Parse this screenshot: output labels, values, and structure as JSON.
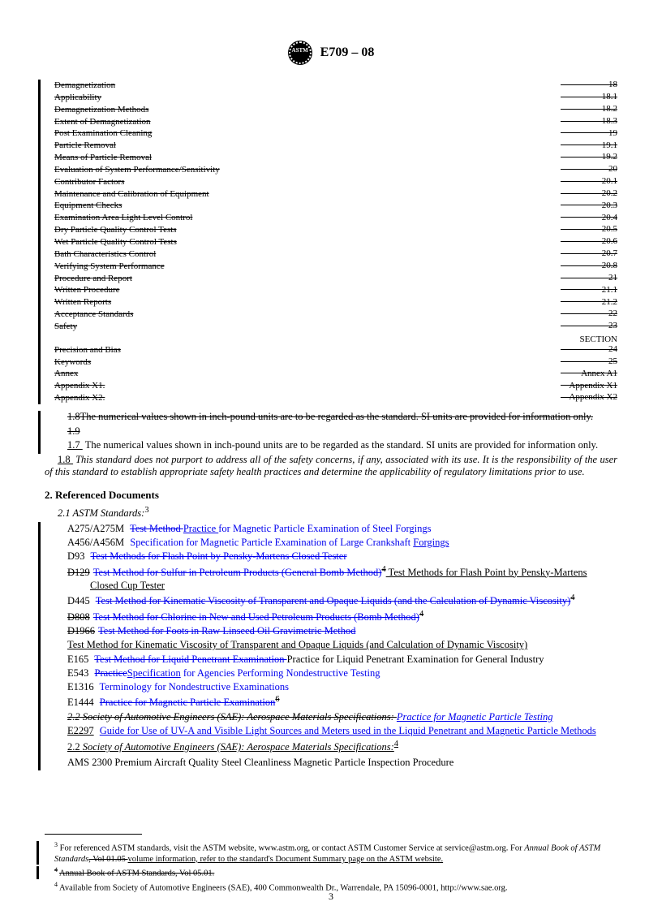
{
  "header": {
    "standard_id": "E709 – 08",
    "logo_text": "ASTM"
  },
  "toc": {
    "rows": [
      {
        "label": "Demagnetization",
        "page": "18"
      },
      {
        "label": "Applicability",
        "page": "18.1"
      },
      {
        "label": "Demagnetization Methods",
        "page": "18.2"
      },
      {
        "label": "Extent of Demagnetization",
        "page": "18.3"
      },
      {
        "label": "Post Examination Cleaning",
        "page": "19"
      },
      {
        "label": "Particle Removal",
        "page": "19.1"
      },
      {
        "label": "Means of Particle Removal",
        "page": "19.2"
      },
      {
        "label": "Evaluation of System Performance/Sensitivity",
        "page": "20"
      },
      {
        "label": "Contributor Factors",
        "page": "20.1"
      },
      {
        "label": "Maintenance and Calibration of Equipment",
        "page": "20.2"
      },
      {
        "label": "Equipment Checks",
        "page": "20.3"
      },
      {
        "label": "Examination Area Light Level Control",
        "page": "20.4"
      },
      {
        "label": "Dry Particle Quality Control Tests",
        "page": "20.5"
      },
      {
        "label": "Wet Particle Quality Control Tests",
        "page": "20.6"
      },
      {
        "label": "Bath Characteristics Control",
        "page": "20.7"
      },
      {
        "label": "Verifying System Performance",
        "page": "20.8"
      },
      {
        "label": "Procedure and Report",
        "page": "21"
      },
      {
        "label": "Written Procedure",
        "page": "21.1"
      },
      {
        "label": "Written Reports",
        "page": "21.2"
      },
      {
        "label": "Acceptance Standards",
        "page": "22"
      },
      {
        "label": "Safety",
        "page": "23"
      }
    ],
    "section_label": "SECTION",
    "section_rows": [
      {
        "label": "Precision and Bias",
        "page": "24"
      },
      {
        "label": "Keywords",
        "page": "25"
      },
      {
        "label": "Annex",
        "page": "Annex  A1"
      },
      {
        "label": "Appendix X1.",
        "page": "Appendix X1"
      },
      {
        "label": "Appendix X2.",
        "page": "Appendix X2"
      }
    ]
  },
  "paragraphs": {
    "p18": "1.8The numerical values shown in inch-pound units are to be regarded as the standard. SI units are provided for information only.",
    "p19": "1.9",
    "p17num": "1.7 ",
    "p17text": "The numerical values shown in inch-pound units are to be regarded as the standard. SI units are provided for information only.",
    "p18b_num": "1.8 ",
    "p18b_text": "This standard does not purport to address all of the safety concerns, if any, associated with its use. It is the responsibility of the user of this standard to establish appropriate safety health practices and determine the applicability of regulatory limitations prior to use."
  },
  "refs": {
    "section_title": "2. Referenced Documents",
    "astm_title": "2.1 ASTM Standards:",
    "sup3": "3",
    "items": [
      {
        "code": "A275/A275M",
        "del": "Test Method ",
        "ins": "Practice ",
        "rest": "for Magnetic Particle Examination of Steel Forgings"
      },
      {
        "code": "A456/A456M",
        "full": "Specification for Magnetic Particle Examination of Large Crankshaft ",
        "underline_tail": "Forgings"
      },
      {
        "code": "D93",
        "del": "Test Methods for Flash Point by Pensky-Martens Closed Tester"
      },
      {
        "code": "D129",
        "struck_code": true,
        "del": "Test Method for Sulfur in Petroleum Products (General Bomb Method)",
        "sup": "4",
        "ins": " Test Methods for Flash Point by Pensky-Martens Closed Cup Tester"
      },
      {
        "code": "D445",
        "del": "Test Method for Kinematic Viscosity of Transparent and Opaque Liquids (and the Calculation of Dynamic Viscosity)",
        "sup": "4"
      },
      {
        "code": "D808",
        "struck_code": true,
        "del": "Test Method for Chlorine in New and Used Petroleum Products (Bomb Method)",
        "sup": "4"
      },
      {
        "code": "D1966",
        "struck_code": true,
        "del": "Test Method for Foots in Raw Linseed Oil Gravimetric Method"
      },
      {
        "code": "",
        "plain": "Test Method for Kinematic Viscosity of Transparent and Opaque Liquids (and Calculation of Dynamic Viscosity)"
      },
      {
        "code": "E165",
        "del": "Test Method for Liquid Penetrant Examination ",
        "ins_plain": "Practice for Liquid Penetrant Examination for General Industry"
      },
      {
        "code": "E543",
        "del_word": "Practice",
        "ins_word": "Specification",
        "rest2": " for Agencies Performing Nondestructive Testing"
      },
      {
        "code": "E1316",
        "full2": "Terminology for Nondestructive Examinations"
      },
      {
        "code": "E1444",
        "del": "Practice for Magnetic Particle Examination",
        "sup": "6"
      },
      {
        "sae_del": "2.2 Society of Automotive Engineers (SAE): Aerospace Materials Specifications: ",
        "sae_ins": "Practice for Magnetic Particle Testing"
      },
      {
        "code": "E2297",
        "full2": "Guide for Use of UV-A and Visible Light Sources and Meters used in the Liquid Penetrant and Magnetic Particle Methods"
      }
    ],
    "sae_title_num": "2.2  ",
    "sae_title": "Society of Automotive Engineers (SAE): Aerospace Materials Specifications:",
    "sup4": "4",
    "ams": "AMS 2300  Premium Aircraft Quality Steel Cleanliness Magnetic Particle Inspection Procedure"
  },
  "footnotes": {
    "f3_a": "For referenced ASTM standards, visit the ASTM website, www.astm.org, or contact ASTM Customer Service at service@astm.org. For ",
    "f3_b": "Annual Book of ASTM Standards",
    "f3_del": ", Vol 01.05 ",
    "f3_c": "volume information, refer to the standard's Document Summary page on the ASTM website.",
    "f4_del": "Annual Book of ASTM Standards, Vol 05.01.",
    "f4": "Available from Society of Automotive Engineers (SAE), 400 Commonwealth Dr., Warrendale, PA 15096-0001, http://www.sae.org."
  },
  "pagenum": "3",
  "colors": {
    "text": "#000000",
    "link": "#0000ee",
    "bg": "#ffffff"
  }
}
